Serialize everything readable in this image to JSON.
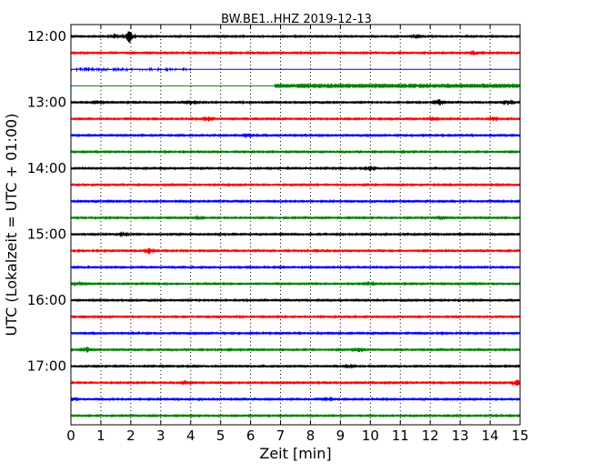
{
  "chart_data": {
    "type": "line",
    "title": "BW.BE1..HHZ 2019-12-13",
    "xlabel": "Zeit  [min]",
    "ylabel": "UTC (Lokalzeit = UTC + 01:00)",
    "xlim": [
      0,
      15
    ],
    "x_ticks": [
      "0",
      "1",
      "2",
      "3",
      "4",
      "5",
      "6",
      "7",
      "8",
      "9",
      "10",
      "11",
      "12",
      "13",
      "14",
      "15"
    ],
    "y_ticks": [
      {
        "label": "12:00",
        "row": 0
      },
      {
        "label": "13:00",
        "row": 4
      },
      {
        "label": "14:00",
        "row": 8
      },
      {
        "label": "15:00",
        "row": 12
      },
      {
        "label": "16:00",
        "row": 16
      },
      {
        "label": "17:00",
        "row": 20
      }
    ],
    "grid": "vertical dotted at each minute",
    "color_cycle": [
      "#000000",
      "#ff0000",
      "#0000ff",
      "#008000"
    ],
    "trace_start_time": "12:00",
    "trace_minutes_each": 15,
    "traces": [
      {
        "start": "12:00",
        "color": "#000000",
        "noise": 0.6,
        "events": [
          {
            "t": 1.95,
            "amp": 9
          },
          {
            "t": 1.45,
            "amp": 2.5
          },
          {
            "t": 11.5,
            "amp": 1.2
          }
        ]
      },
      {
        "start": "12:15",
        "color": "#ff0000",
        "noise": 0.6,
        "events": [
          {
            "t": 13.5,
            "amp": 1.5
          }
        ]
      },
      {
        "start": "12:30",
        "color": "#0000ff",
        "noise": 0.5,
        "events": [],
        "data_until_min": 4.0
      },
      {
        "start": "12:45",
        "color": "#008000",
        "noise": 0.6,
        "events": [],
        "data_from_min": 6.8
      },
      {
        "start": "13:00",
        "color": "#000000",
        "noise": 0.6,
        "events": [
          {
            "t": 0.9,
            "amp": 2
          },
          {
            "t": 4.0,
            "amp": 2.5
          },
          {
            "t": 12.3,
            "amp": 4
          },
          {
            "t": 14.6,
            "amp": 2.5
          }
        ]
      },
      {
        "start": "13:15",
        "color": "#ff0000",
        "noise": 0.6,
        "events": [
          {
            "t": 4.6,
            "amp": 3
          },
          {
            "t": 12.1,
            "amp": 2
          },
          {
            "t": 14.1,
            "amp": 2
          }
        ]
      },
      {
        "start": "13:30",
        "color": "#0000ff",
        "noise": 0.6,
        "events": [
          {
            "t": 5.9,
            "amp": 1.5
          }
        ]
      },
      {
        "start": "13:45",
        "color": "#008000",
        "noise": 0.6,
        "events": []
      },
      {
        "start": "14:00",
        "color": "#000000",
        "noise": 0.6,
        "events": [
          {
            "t": 10.0,
            "amp": 3
          }
        ]
      },
      {
        "start": "14:15",
        "color": "#ff0000",
        "noise": 0.6,
        "events": []
      },
      {
        "start": "14:30",
        "color": "#0000ff",
        "noise": 0.6,
        "events": []
      },
      {
        "start": "14:45",
        "color": "#008000",
        "noise": 0.6,
        "events": [
          {
            "t": 4.3,
            "amp": 1.5
          },
          {
            "t": 12.4,
            "amp": 1.5
          }
        ]
      },
      {
        "start": "15:00",
        "color": "#000000",
        "noise": 0.6,
        "events": [
          {
            "t": 1.75,
            "amp": 2
          }
        ]
      },
      {
        "start": "15:15",
        "color": "#ff0000",
        "noise": 0.6,
        "events": [
          {
            "t": 2.6,
            "amp": 4
          }
        ]
      },
      {
        "start": "15:30",
        "color": "#0000ff",
        "noise": 0.6,
        "events": []
      },
      {
        "start": "15:45",
        "color": "#008000",
        "noise": 0.6,
        "events": [
          {
            "t": 0.2,
            "amp": 1.5
          },
          {
            "t": 10.0,
            "amp": 1.5
          }
        ]
      },
      {
        "start": "16:00",
        "color": "#000000",
        "noise": 0.6,
        "events": []
      },
      {
        "start": "16:15",
        "color": "#ff0000",
        "noise": 0.6,
        "events": []
      },
      {
        "start": "16:30",
        "color": "#0000ff",
        "noise": 0.6,
        "events": []
      },
      {
        "start": "16:45",
        "color": "#008000",
        "noise": 0.6,
        "events": [
          {
            "t": 0.55,
            "amp": 3.5
          },
          {
            "t": 9.6,
            "amp": 3
          }
        ]
      },
      {
        "start": "17:00",
        "color": "#000000",
        "noise": 0.6,
        "events": [
          {
            "t": 9.3,
            "amp": 1.5
          }
        ]
      },
      {
        "start": "17:15",
        "color": "#ff0000",
        "noise": 0.6,
        "events": [
          {
            "t": 14.9,
            "amp": 4
          },
          {
            "t": 3.8,
            "amp": 1.2
          }
        ]
      },
      {
        "start": "17:30",
        "color": "#0000ff",
        "noise": 0.6,
        "events": [
          {
            "t": 0.05,
            "amp": 2
          },
          {
            "t": 8.6,
            "amp": 1.2
          }
        ]
      },
      {
        "start": "17:45",
        "color": "#008000",
        "noise": 0.6,
        "events": []
      }
    ]
  }
}
